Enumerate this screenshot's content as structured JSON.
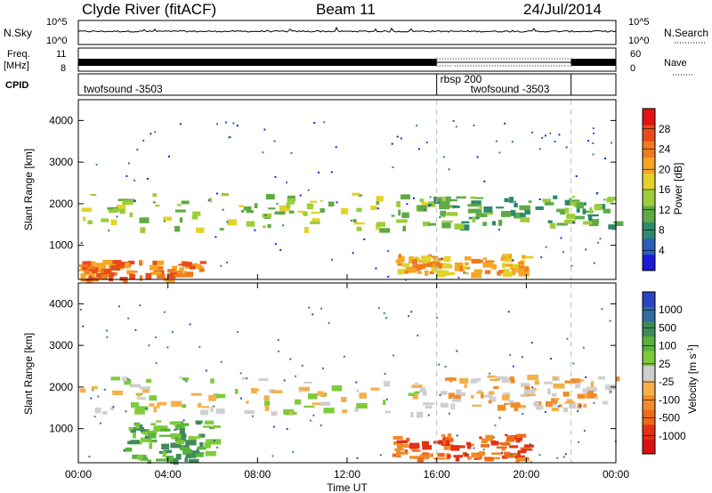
{
  "header": {
    "station": "Clyde River (fitACF)",
    "beam": "Beam 11",
    "date": "24/Jul/2014"
  },
  "top_panels": {
    "nsky_label": "N.Sky",
    "nsearch_label": "N.Search",
    "nsky_ticks": [
      "10^5",
      "10^0"
    ],
    "nsearch_ticks": [
      "10^5",
      "10^0"
    ],
    "freq_label_1": "Freq.",
    "freq_label_2": "[MHz]",
    "freq_ticks": [
      "11",
      "8"
    ],
    "nave_label": "Nave",
    "nave_ticks": [
      "60",
      "0"
    ],
    "cpid_label": "CPID",
    "cpid_segments": [
      {
        "start_h": 0,
        "end_h": 16,
        "name": "twofsound",
        "id": "-3503"
      },
      {
        "start_h": 16,
        "end_h": 22,
        "name": "rbsp",
        "id": "200"
      },
      {
        "start_h": 16,
        "end_h": 22,
        "name": "twofsound",
        "id": "-3503"
      }
    ]
  },
  "chart_data": [
    {
      "type": "heatmap",
      "title": "",
      "xlabel": "",
      "ylabel": "Slant Range [km]",
      "x_range": [
        "00:00",
        "00:00"
      ],
      "x_range_hours": [
        0,
        24
      ],
      "y_range_km": [
        180,
        4500
      ],
      "y_ticks": [
        1000,
        2000,
        3000,
        4000
      ],
      "colorbar": {
        "label": "Power [dB]",
        "ticks": [
          4,
          8,
          12,
          16,
          20,
          24,
          28
        ],
        "range": [
          0,
          32
        ],
        "colors": [
          "#1b1bd8",
          "#2a5fb8",
          "#2e8a6c",
          "#5faa45",
          "#9ccd3a",
          "#e2d22a",
          "#f5a623",
          "#f07a1e",
          "#e84b1a",
          "#e21414"
        ]
      },
      "echo_bands": [
        {
          "t0": 0.0,
          "t1": 15.8,
          "r0": 1400,
          "r1": 2300,
          "value": 13
        },
        {
          "t0": 0.0,
          "t1": 5.6,
          "r0": 180,
          "r1": 650,
          "value": 26
        },
        {
          "t0": 14.0,
          "t1": 20.0,
          "r0": 350,
          "r1": 800,
          "value": 23
        },
        {
          "t0": 15.5,
          "t1": 24.0,
          "r0": 1500,
          "r1": 2200,
          "value": 12
        }
      ],
      "dashed_markers_hours": [
        16,
        22
      ]
    },
    {
      "type": "heatmap",
      "title": "",
      "xlabel": "Time UT",
      "ylabel": "Slant Range [km]",
      "x_ticks": [
        "00:00",
        "04:00",
        "08:00",
        "12:00",
        "16:00",
        "20:00",
        "00:00"
      ],
      "x_range_hours": [
        0,
        24
      ],
      "y_range_km": [
        180,
        4500
      ],
      "y_ticks": [
        1000,
        2000,
        3000,
        4000
      ],
      "colorbar": {
        "label": "Velocity [m s^-1]",
        "ticks": [
          "1000",
          "500",
          "100",
          "25",
          "-25",
          "-100",
          "-500",
          "-1000"
        ],
        "colors": [
          "#2a45c0",
          "#2f6ea0",
          "#3f8a5a",
          "#58b23c",
          "#7dcb3a",
          "#cfcfcf",
          "#f5b04a",
          "#f08c28",
          "#ee6a1a",
          "#e43014",
          "#dd1010"
        ]
      },
      "echo_bands": [
        {
          "t0": 0.0,
          "t1": 15.8,
          "r0": 1400,
          "r1": 2300,
          "value": 0
        },
        {
          "t0": 2.0,
          "t1": 6.0,
          "r0": 250,
          "r1": 1200,
          "value": 150
        },
        {
          "t0": 14.0,
          "t1": 20.0,
          "r0": 300,
          "r1": 900,
          "value": -250
        },
        {
          "t0": 16.0,
          "t1": 24.0,
          "r0": 1500,
          "r1": 2300,
          "value": -40
        }
      ],
      "dashed_markers_hours": [
        16,
        22
      ]
    }
  ]
}
